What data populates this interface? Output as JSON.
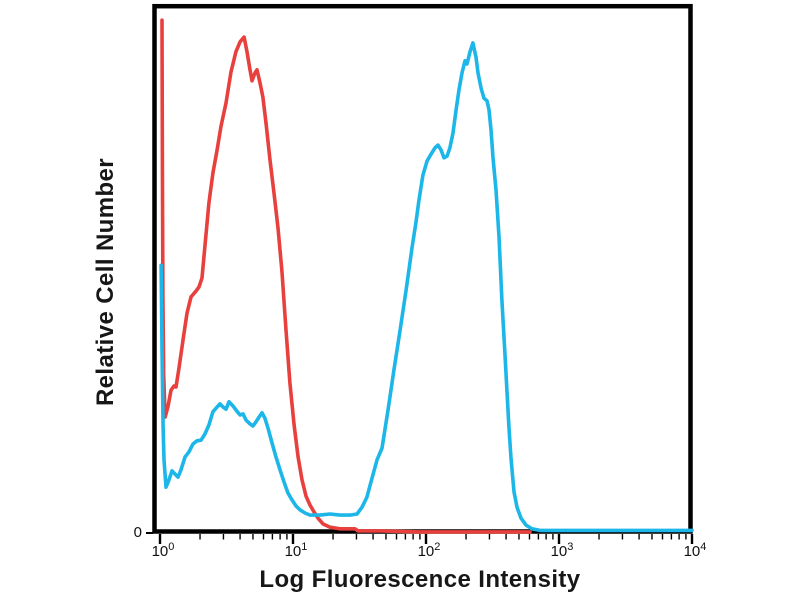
{
  "figure": {
    "xlabel": "Log Fluorescence Intensity",
    "ylabel": "Relative Cell Number",
    "background_color": "#ffffff",
    "frame_color": "#000000"
  },
  "chart_data": {
    "type": "line",
    "subtype": "flow_cytometry_histogram_overlay",
    "title": "",
    "xlabel": "Log Fluorescence Intensity",
    "ylabel": "Relative Cell Number",
    "x_scale": "log10",
    "xlim_log10": [
      -0.05,
      4.0
    ],
    "ylim": [
      0,
      1
    ],
    "grid": false,
    "legend": "none",
    "x_ticks": [
      {
        "base": "10",
        "exp": "0",
        "log10": 0
      },
      {
        "base": "10",
        "exp": "1",
        "log10": 1
      },
      {
        "base": "10",
        "exp": "2",
        "log10": 2
      },
      {
        "base": "10",
        "exp": "3",
        "log10": 3
      },
      {
        "base": "10",
        "exp": "4",
        "log10": 4
      }
    ],
    "x_minor_tick_mantissas": [
      2,
      3,
      4,
      5,
      6,
      7,
      8,
      9
    ],
    "y_ticks": [
      {
        "label": "0",
        "value": 0
      }
    ],
    "series": [
      {
        "name": "red-curve",
        "color": "#e8403d",
        "points_log10x_relheight": [
          [
            0.015,
            0.973
          ],
          [
            0.018,
            0.7
          ],
          [
            0.022,
            0.45
          ],
          [
            0.028,
            0.3
          ],
          [
            0.038,
            0.22
          ],
          [
            0.06,
            0.24
          ],
          [
            0.083,
            0.271
          ],
          [
            0.105,
            0.279
          ],
          [
            0.12,
            0.277
          ],
          [
            0.143,
            0.313
          ],
          [
            0.173,
            0.366
          ],
          [
            0.203,
            0.417
          ],
          [
            0.233,
            0.448
          ],
          [
            0.271,
            0.459
          ],
          [
            0.293,
            0.467
          ],
          [
            0.316,
            0.484
          ],
          [
            0.338,
            0.546
          ],
          [
            0.368,
            0.626
          ],
          [
            0.398,
            0.683
          ],
          [
            0.429,
            0.727
          ],
          [
            0.459,
            0.772
          ],
          [
            0.496,
            0.816
          ],
          [
            0.534,
            0.875
          ],
          [
            0.571,
            0.913
          ],
          [
            0.602,
            0.932
          ],
          [
            0.632,
            0.941
          ],
          [
            0.654,
            0.913
          ],
          [
            0.677,
            0.879
          ],
          [
            0.692,
            0.858
          ],
          [
            0.714,
            0.873
          ],
          [
            0.729,
            0.879
          ],
          [
            0.752,
            0.854
          ],
          [
            0.774,
            0.827
          ],
          [
            0.797,
            0.778
          ],
          [
            0.827,
            0.708
          ],
          [
            0.857,
            0.645
          ],
          [
            0.887,
            0.579
          ],
          [
            0.917,
            0.495
          ],
          [
            0.947,
            0.385
          ],
          [
            0.977,
            0.285
          ],
          [
            1.008,
            0.205
          ],
          [
            1.038,
            0.144
          ],
          [
            1.068,
            0.101
          ],
          [
            1.098,
            0.07
          ],
          [
            1.128,
            0.053
          ],
          [
            1.158,
            0.04
          ],
          [
            1.188,
            0.028
          ],
          [
            1.226,
            0.017
          ],
          [
            1.278,
            0.011
          ],
          [
            1.353,
            0.008
          ],
          [
            1.466,
            0.008
          ],
          [
            1.489,
            0.004
          ],
          [
            1.654,
            0.004
          ],
          [
            1.955,
            0.002
          ],
          [
            2.331,
            0.002
          ],
          [
            2.782,
            0.002
          ]
        ]
      },
      {
        "name": "cyan-curve",
        "color": "#1cb6e8",
        "points_log10x_relheight": [
          [
            0.008,
            0.508
          ],
          [
            0.015,
            0.35
          ],
          [
            0.023,
            0.2
          ],
          [
            0.03,
            0.139
          ],
          [
            0.045,
            0.087
          ],
          [
            0.068,
            0.101
          ],
          [
            0.09,
            0.118
          ],
          [
            0.113,
            0.112
          ],
          [
            0.135,
            0.106
          ],
          [
            0.158,
            0.12
          ],
          [
            0.188,
            0.144
          ],
          [
            0.218,
            0.154
          ],
          [
            0.248,
            0.169
          ],
          [
            0.278,
            0.175
          ],
          [
            0.308,
            0.176
          ],
          [
            0.338,
            0.188
          ],
          [
            0.368,
            0.205
          ],
          [
            0.398,
            0.23
          ],
          [
            0.429,
            0.239
          ],
          [
            0.451,
            0.245
          ],
          [
            0.474,
            0.239
          ],
          [
            0.496,
            0.235
          ],
          [
            0.519,
            0.249
          ],
          [
            0.549,
            0.241
          ],
          [
            0.579,
            0.231
          ],
          [
            0.602,
            0.224
          ],
          [
            0.624,
            0.226
          ],
          [
            0.647,
            0.214
          ],
          [
            0.677,
            0.207
          ],
          [
            0.699,
            0.203
          ],
          [
            0.722,
            0.211
          ],
          [
            0.744,
            0.22
          ],
          [
            0.767,
            0.228
          ],
          [
            0.789,
            0.218
          ],
          [
            0.812,
            0.199
          ],
          [
            0.842,
            0.171
          ],
          [
            0.872,
            0.144
          ],
          [
            0.902,
            0.12
          ],
          [
            0.932,
            0.097
          ],
          [
            0.962,
            0.076
          ],
          [
            0.992,
            0.063
          ],
          [
            1.023,
            0.051
          ],
          [
            1.053,
            0.044
          ],
          [
            1.09,
            0.038
          ],
          [
            1.128,
            0.034
          ],
          [
            1.203,
            0.034
          ],
          [
            1.278,
            0.036
          ],
          [
            1.353,
            0.034
          ],
          [
            1.429,
            0.034
          ],
          [
            1.481,
            0.036
          ],
          [
            1.519,
            0.049
          ],
          [
            1.556,
            0.068
          ],
          [
            1.594,
            0.104
          ],
          [
            1.632,
            0.139
          ],
          [
            1.669,
            0.161
          ],
          [
            1.714,
            0.233
          ],
          [
            1.759,
            0.309
          ],
          [
            1.805,
            0.385
          ],
          [
            1.85,
            0.461
          ],
          [
            1.895,
            0.541
          ],
          [
            1.925,
            0.59
          ],
          [
            1.947,
            0.632
          ],
          [
            1.977,
            0.679
          ],
          [
            2.008,
            0.706
          ],
          [
            2.038,
            0.719
          ],
          [
            2.068,
            0.731
          ],
          [
            2.09,
            0.736
          ],
          [
            2.113,
            0.727
          ],
          [
            2.135,
            0.712
          ],
          [
            2.158,
            0.715
          ],
          [
            2.18,
            0.731
          ],
          [
            2.203,
            0.759
          ],
          [
            2.226,
            0.803
          ],
          [
            2.248,
            0.841
          ],
          [
            2.271,
            0.873
          ],
          [
            2.293,
            0.896
          ],
          [
            2.308,
            0.89
          ],
          [
            2.331,
            0.913
          ],
          [
            2.353,
            0.93
          ],
          [
            2.376,
            0.903
          ],
          [
            2.391,
            0.873
          ],
          [
            2.414,
            0.844
          ],
          [
            2.436,
            0.825
          ],
          [
            2.459,
            0.82
          ],
          [
            2.474,
            0.803
          ],
          [
            2.489,
            0.765
          ],
          [
            2.504,
            0.712
          ],
          [
            2.526,
            0.651
          ],
          [
            2.549,
            0.562
          ],
          [
            2.571,
            0.442
          ],
          [
            2.594,
            0.338
          ],
          [
            2.609,
            0.268
          ],
          [
            2.624,
            0.199
          ],
          [
            2.639,
            0.142
          ],
          [
            2.662,
            0.078
          ],
          [
            2.684,
            0.049
          ],
          [
            2.714,
            0.028
          ],
          [
            2.752,
            0.015
          ],
          [
            2.797,
            0.008
          ],
          [
            2.857,
            0.005
          ],
          [
            3.008,
            0.005
          ],
          [
            3.308,
            0.005
          ],
          [
            3.684,
            0.005
          ],
          [
            4.0,
            0.005
          ]
        ]
      }
    ]
  }
}
